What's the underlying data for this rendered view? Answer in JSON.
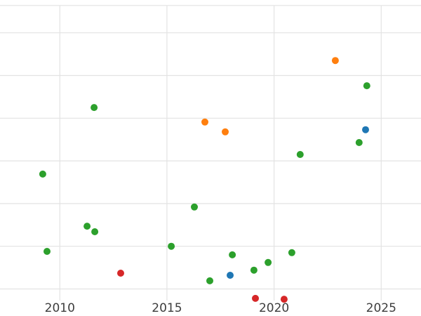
{
  "chart_data": {
    "type": "scatter",
    "title": "",
    "xlabel": "",
    "ylabel": "",
    "grid": true,
    "legend": "none",
    "x_ticks": [
      2010,
      2015,
      2020,
      2025
    ],
    "x_tick_labels": [
      "2010",
      "2015",
      "2020",
      "2025"
    ],
    "xlim": [
      2007.2,
      2026.9
    ],
    "ylim": [
      -0.3,
      6.65
    ],
    "y_gridlines": [
      0,
      1,
      2,
      3,
      4,
      5,
      6,
      6.64
    ],
    "marker_radius": 5,
    "series": [
      {
        "name": "green",
        "color": "#2ca02c",
        "points": [
          [
            2009.2,
            2.69
          ],
          [
            2009.4,
            0.88
          ],
          [
            2011.27,
            1.47
          ],
          [
            2011.6,
            4.25
          ],
          [
            2011.63,
            1.34
          ],
          [
            2015.2,
            1.0
          ],
          [
            2016.28,
            1.92
          ],
          [
            2017.0,
            0.19
          ],
          [
            2018.05,
            0.8
          ],
          [
            2019.06,
            0.44
          ],
          [
            2019.72,
            0.62
          ],
          [
            2020.83,
            0.85
          ],
          [
            2021.22,
            3.15
          ],
          [
            2023.97,
            3.43
          ],
          [
            2024.33,
            4.76
          ]
        ]
      },
      {
        "name": "orange",
        "color": "#ff7f0e",
        "points": [
          [
            2016.77,
            3.91
          ],
          [
            2017.72,
            3.68
          ],
          [
            2022.86,
            5.35
          ]
        ]
      },
      {
        "name": "blue",
        "color": "#1f77b4",
        "points": [
          [
            2017.95,
            0.32
          ],
          [
            2024.27,
            3.73
          ]
        ]
      },
      {
        "name": "red",
        "color": "#d62728",
        "points": [
          [
            2012.84,
            0.37
          ],
          [
            2019.13,
            -0.22
          ],
          [
            2020.47,
            -0.24
          ]
        ]
      }
    ],
    "colors": {
      "gridline": "#e3e3e3",
      "tick_label": "#3d3d3d",
      "background": "#ffffff"
    }
  }
}
